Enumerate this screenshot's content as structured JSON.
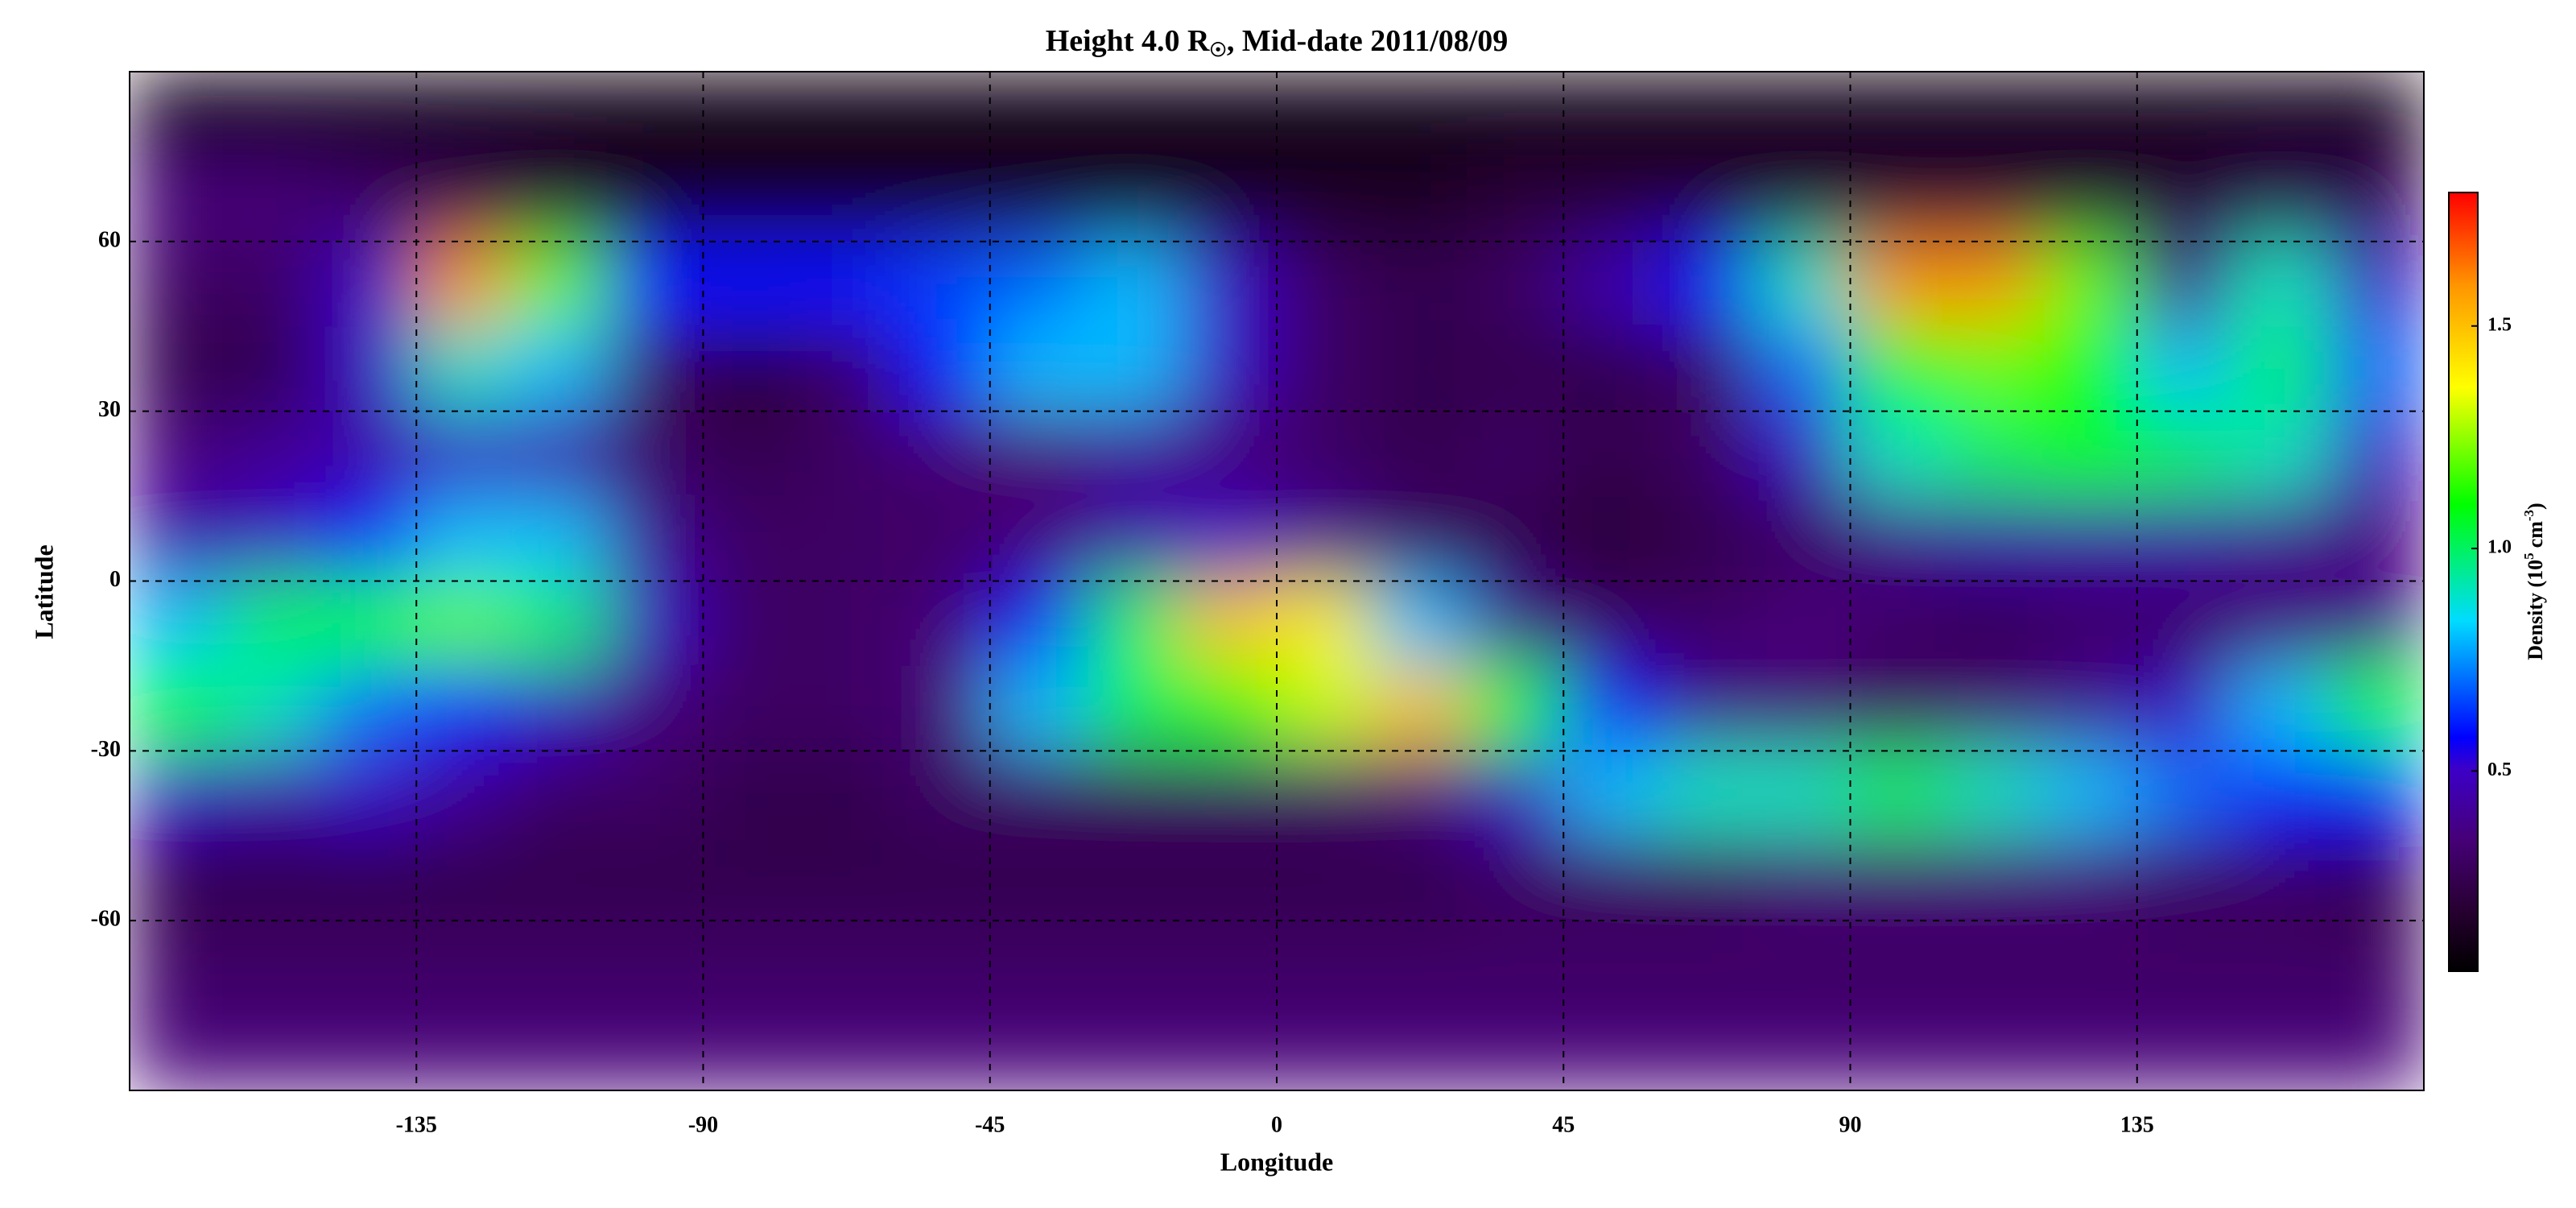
{
  "chart_data": {
    "type": "heatmap",
    "title": "Height 4.0 R",
    "title_subscript": "☉",
    "title_suffix": ", Mid-date 2011/08/09",
    "x_label": "Longitude",
    "y_label": "Latitude",
    "xlim": [
      -180,
      180
    ],
    "ylim": [
      -90,
      90
    ],
    "xticks": [
      -135,
      -90,
      -45,
      0,
      45,
      90,
      135
    ],
    "yticks": [
      -60,
      -30,
      0,
      30,
      60
    ],
    "grid": true,
    "x": [
      -172.5,
      -157.5,
      -142.5,
      -127.5,
      -112.5,
      -97.5,
      -82.5,
      -67.5,
      -52.5,
      -37.5,
      -22.5,
      -7.5,
      7.5,
      22.5,
      37.5,
      52.5,
      67.5,
      82.5,
      97.5,
      112.5,
      127.5,
      142.5,
      157.5,
      172.5
    ],
    "y": [
      82.5,
      67.5,
      52.5,
      37.5,
      22.5,
      7.5,
      -7.5,
      -22.5,
      -37.5,
      -52.5,
      -67.5,
      -82.5
    ],
    "values": [
      [
        0.1,
        0.1,
        0.1,
        0.1,
        0.1,
        0.1,
        0.1,
        0.1,
        0.1,
        0.1,
        0.1,
        0.1,
        0.1,
        0.1,
        0.1,
        0.1,
        0.1,
        0.1,
        0.1,
        0.1,
        0.1,
        0.1,
        0.1,
        0.1
      ],
      [
        0.35,
        0.35,
        0.3,
        0.25,
        0.2,
        0.15,
        0.15,
        0.15,
        0.15,
        0.15,
        0.15,
        0.15,
        0.15,
        0.15,
        0.2,
        0.2,
        0.2,
        0.2,
        0.2,
        0.2,
        0.2,
        0.2,
        0.25,
        0.25
      ],
      [
        0.3,
        0.3,
        0.5,
        1.6,
        1.2,
        0.6,
        0.6,
        0.6,
        0.65,
        0.7,
        0.8,
        0.5,
        0.3,
        0.25,
        0.3,
        0.45,
        0.6,
        0.9,
        1.6,
        1.6,
        1.2,
        0.4,
        0.9,
        0.5
      ],
      [
        0.25,
        0.25,
        0.5,
        0.9,
        0.8,
        0.3,
        0.2,
        0.3,
        0.6,
        0.8,
        0.8,
        0.5,
        0.3,
        0.25,
        0.25,
        0.25,
        0.3,
        0.7,
        1.1,
        1.2,
        1.1,
        0.8,
        1.0,
        0.7
      ],
      [
        0.35,
        0.4,
        0.45,
        0.5,
        0.45,
        0.3,
        0.25,
        0.3,
        0.35,
        0.35,
        0.4,
        0.35,
        0.3,
        0.25,
        0.3,
        0.25,
        0.3,
        0.5,
        0.9,
        1.0,
        1.1,
        1.0,
        0.9,
        0.5
      ],
      [
        0.45,
        0.5,
        0.6,
        0.8,
        0.8,
        0.4,
        0.3,
        0.3,
        0.3,
        0.35,
        0.45,
        0.5,
        0.4,
        0.3,
        0.25,
        0.2,
        0.25,
        0.3,
        0.4,
        0.45,
        0.45,
        0.45,
        0.4,
        0.35
      ],
      [
        0.8,
        1.0,
        1.1,
        1.2,
        1.0,
        0.5,
        0.3,
        0.3,
        0.35,
        0.6,
        1.0,
        1.5,
        1.4,
        0.8,
        0.4,
        0.3,
        0.3,
        0.35,
        0.3,
        0.25,
        0.3,
        0.3,
        0.35,
        0.4
      ],
      [
        1.1,
        0.9,
        0.7,
        0.6,
        0.5,
        0.35,
        0.3,
        0.3,
        0.35,
        0.8,
        1.0,
        1.1,
        1.3,
        1.5,
        1.1,
        0.6,
        0.4,
        0.35,
        0.3,
        0.35,
        0.4,
        0.5,
        0.8,
        1.1
      ],
      [
        0.5,
        0.45,
        0.5,
        0.4,
        0.3,
        0.3,
        0.25,
        0.25,
        0.3,
        0.3,
        0.3,
        0.3,
        0.3,
        0.35,
        0.5,
        0.8,
        0.9,
        0.9,
        1.0,
        0.9,
        0.8,
        0.7,
        0.6,
        0.6
      ],
      [
        0.25,
        0.25,
        0.25,
        0.25,
        0.25,
        0.25,
        0.25,
        0.25,
        0.25,
        0.25,
        0.25,
        0.25,
        0.25,
        0.25,
        0.3,
        0.3,
        0.3,
        0.35,
        0.35,
        0.35,
        0.35,
        0.3,
        0.3,
        0.25
      ],
      [
        0.3,
        0.3,
        0.3,
        0.3,
        0.3,
        0.3,
        0.3,
        0.3,
        0.3,
        0.3,
        0.3,
        0.3,
        0.3,
        0.3,
        0.3,
        0.3,
        0.3,
        0.3,
        0.3,
        0.3,
        0.3,
        0.3,
        0.3,
        0.3
      ],
      [
        0.35,
        0.35,
        0.35,
        0.35,
        0.35,
        0.35,
        0.35,
        0.35,
        0.35,
        0.35,
        0.35,
        0.35,
        0.35,
        0.35,
        0.35,
        0.35,
        0.35,
        0.35,
        0.35,
        0.35,
        0.35,
        0.35,
        0.35,
        0.35
      ]
    ],
    "colorbar": {
      "label": "Density (10",
      "label_exp": "5",
      "label_unit": "cm",
      "label_unit_exp": "-3",
      "label_close": ")",
      "clim": [
        0.05,
        1.8
      ],
      "ticks": [
        0.5,
        {
          "value": 1,
          "label": "1.0"
        },
        1.5
      ]
    }
  }
}
